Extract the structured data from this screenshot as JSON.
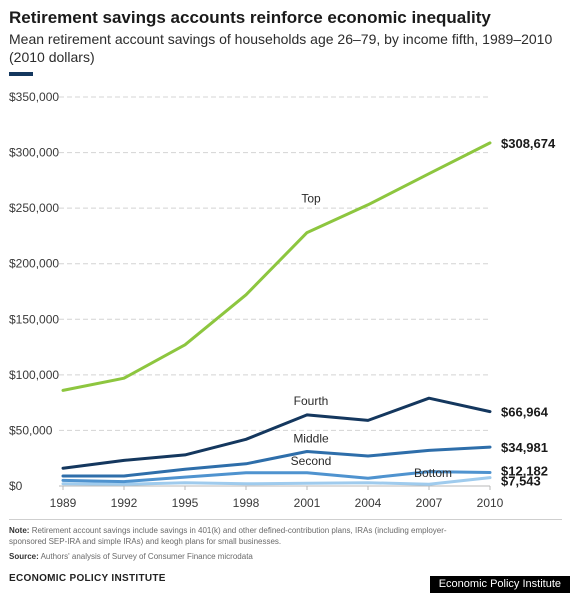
{
  "header": {
    "title": "Retirement savings accounts reinforce economic inequality",
    "subtitle": "Mean retirement account savings of households age 26–79, by income fifth, 1989–2010 (2010 dollars)"
  },
  "chart_data": {
    "type": "line",
    "title": "Retirement savings accounts reinforce economic inequality",
    "subtitle": "Mean retirement account savings of households age 26–79, by income fifth, 1989–2010 (2010 dollars)",
    "xlabel": "",
    "ylabel": "",
    "x": [
      1989,
      1992,
      1995,
      1998,
      2001,
      2004,
      2007,
      2010
    ],
    "x_tick_labels": [
      "1989",
      "1992",
      "1995",
      "1998",
      "2001",
      "2004",
      "2007",
      "2010"
    ],
    "ylim": [
      0,
      350000
    ],
    "y_ticks": [
      0,
      50000,
      100000,
      150000,
      200000,
      250000,
      300000,
      350000
    ],
    "y_tick_labels": [
      "$0",
      "$50,000",
      "$100,000",
      "$150,000",
      "$200,000",
      "$250,000",
      "$300,000",
      "$350,000"
    ],
    "grid": "horizontal dashed",
    "legend": "none (series labeled directly on lines)",
    "series": [
      {
        "name": "Top",
        "color": "#8dc63f",
        "values": [
          86000,
          97000,
          127000,
          172000,
          228000,
          253000,
          281000,
          308674
        ],
        "end_label": "$308,674",
        "label_at": [
          2001,
          255000
        ]
      },
      {
        "name": "Fourth",
        "color": "#14375e",
        "values": [
          16000,
          23000,
          28000,
          42000,
          64000,
          59000,
          79000,
          66964
        ],
        "end_label": "$66,964",
        "label_at": [
          2001,
          73000
        ]
      },
      {
        "name": "Middle",
        "color": "#2e6eaa",
        "values": [
          9000,
          9000,
          15000,
          20000,
          31000,
          27000,
          32000,
          34981
        ],
        "end_label": "$34,981",
        "label_at": [
          2001,
          39000
        ]
      },
      {
        "name": "Second",
        "color": "#4f93cf",
        "values": [
          5000,
          4000,
          8000,
          12000,
          12000,
          7000,
          13000,
          12182
        ],
        "end_label": "$12,182",
        "label_at": [
          2001,
          19000
        ]
      },
      {
        "name": "Bottom",
        "color": "#9fcbed",
        "values": [
          2000,
          1500,
          3000,
          2000,
          2500,
          3000,
          1500,
          7543
        ],
        "end_label": "$7,543",
        "label_at": [
          2007,
          8000
        ]
      }
    ]
  },
  "footer": {
    "note_label": "Note:",
    "note_text": "Retirement account savings include savings in 401(k) and other defined-contribution plans, IRAs (including employer-sponsored SEP-IRA and simple IRAs) and keogh plans for small businesses.",
    "source_label": "Source:",
    "source_text": "Authors' analysis of Survey of Consumer Finance microdata",
    "org_name": "ECONOMIC POLICY INSTITUTE",
    "credit": "Economic Policy Institute"
  }
}
